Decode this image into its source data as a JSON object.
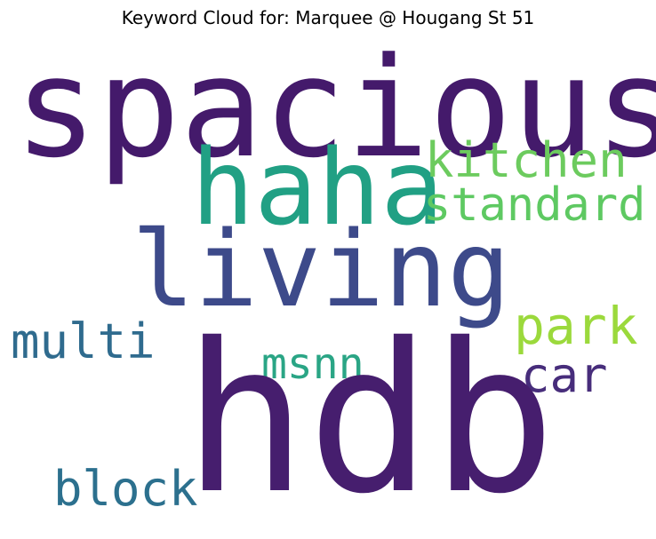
{
  "title": "Keyword Cloud for: Marquee @ Hougang St 51",
  "words": {
    "spacious": {
      "text": "spacious",
      "color": "#441a6b"
    },
    "haha": {
      "text": "haha",
      "color": "#21a084"
    },
    "kitchen": {
      "text": "kitchen",
      "color": "#6ccb5e"
    },
    "standard": {
      "text": "standard",
      "color": "#5ec962"
    },
    "living": {
      "text": "living",
      "color": "#3d4a8a"
    },
    "multi": {
      "text": "multi",
      "color": "#2f6b8e"
    },
    "park": {
      "text": "park",
      "color": "#9bd93c"
    },
    "msnn": {
      "text": "msnn",
      "color": "#2aa585"
    },
    "car": {
      "text": "car",
      "color": "#472d7b"
    },
    "hdb": {
      "text": "hdb",
      "color": "#461e6e"
    },
    "block": {
      "text": "block",
      "color": "#2c708e"
    }
  }
}
